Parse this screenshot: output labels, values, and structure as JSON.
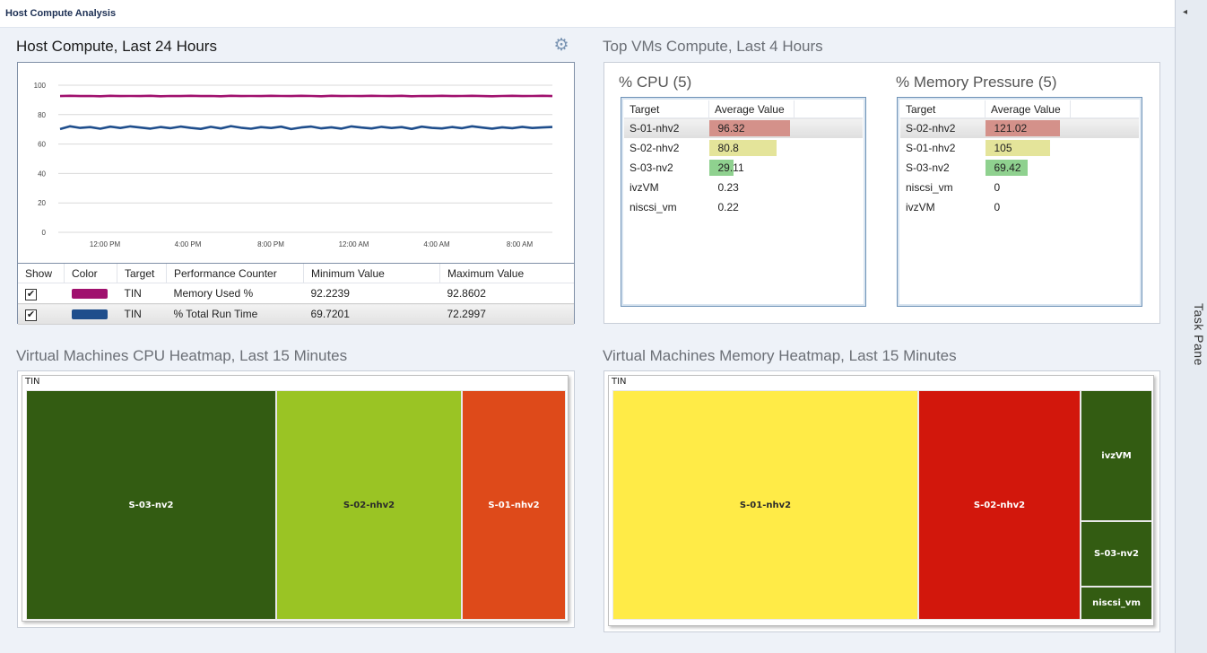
{
  "window": {
    "title": "Host Compute Analysis"
  },
  "task_pane": {
    "label": "Task Pane",
    "collapse_glyph": "◂"
  },
  "host": {
    "title": "Host Compute, Last 24 Hours",
    "gear_icon": "gear-icon",
    "chart_data": {
      "type": "line",
      "x_ticks": [
        "12:00 PM",
        "4:00 PM",
        "8:00 PM",
        "12:00 AM",
        "4:00 AM",
        "8:00 AM"
      ],
      "y_ticks": [
        "100",
        "80",
        "60",
        "40",
        "20",
        "0"
      ],
      "ylim": [
        0,
        100
      ],
      "series": [
        {
          "name": "Memory Used %",
          "color": "#a0106e",
          "values": [
            92.6,
            92.8,
            92.6,
            92.7,
            92.5,
            92.8,
            92.6,
            92.7,
            92.6,
            92.8,
            92.5,
            92.7,
            92.6,
            92.8,
            92.6,
            92.7,
            92.5,
            92.8,
            92.6,
            92.7,
            92.6,
            92.8,
            92.7,
            92.6,
            92.8,
            92.7,
            92.5,
            92.8,
            92.6,
            92.7,
            92.6,
            92.8,
            92.7,
            92.6,
            92.8,
            92.5,
            92.7,
            92.6,
            92.8,
            92.6,
            92.7,
            92.8,
            92.6,
            92.5,
            92.7,
            92.8,
            92.6,
            92.7,
            92.8,
            92.6
          ]
        },
        {
          "name": "% Total Run Time",
          "color": "#1f4e8c",
          "values": [
            70.2,
            72.1,
            71.0,
            71.5,
            70.4,
            71.8,
            70.9,
            72.0,
            71.2,
            70.5,
            71.6,
            70.8,
            71.9,
            71.0,
            70.3,
            71.7,
            70.6,
            72.2,
            71.1,
            70.4,
            71.5,
            70.9,
            71.8,
            70.2,
            71.3,
            71.9,
            70.7,
            71.4,
            70.5,
            72.0,
            71.2,
            70.6,
            71.7,
            70.9,
            71.5,
            70.3,
            71.8,
            71.0,
            70.6,
            71.6,
            70.8,
            72.1,
            71.2,
            70.5,
            71.4,
            70.8,
            71.7,
            70.9,
            71.3,
            71.6
          ]
        }
      ]
    },
    "legend": {
      "columns": [
        "Show",
        "Color",
        "Target",
        "Performance Counter",
        "Minimum Value",
        "Maximum Value"
      ],
      "rows": [
        {
          "show": "✔",
          "color": "#a0106e",
          "target": "TIN",
          "counter": "Memory Used %",
          "min": "92.2239",
          "max": "92.8602"
        },
        {
          "show": "✔",
          "color": "#1f4e8c",
          "target": "TIN",
          "counter": "% Total Run Time",
          "min": "69.7201",
          "max": "72.2997"
        }
      ]
    }
  },
  "top_vms": {
    "title": "Top VMs Compute, Last 4 Hours",
    "cpu": {
      "title": "% CPU (5)",
      "columns": [
        "Target",
        "Average Value"
      ],
      "rows": [
        {
          "target": "S-01-nhv2",
          "value": "96.32",
          "num": 96.32,
          "color": "#d4918a"
        },
        {
          "target": "S-02-nhv2",
          "value": "80.8",
          "num": 80.8,
          "color": "#e4e49a"
        },
        {
          "target": "S-03-nv2",
          "value": "29.11",
          "num": 29.11,
          "color": "#8fd18f"
        },
        {
          "target": "ivzVM",
          "value": "0.23",
          "num": 0.23,
          "color": ""
        },
        {
          "target": "niscsi_vm",
          "value": "0.22",
          "num": 0.22,
          "color": ""
        }
      ]
    },
    "memory": {
      "title": "% Memory Pressure (5)",
      "columns": [
        "Target",
        "Average Value"
      ],
      "rows": [
        {
          "target": "S-02-nhv2",
          "value": "121.02",
          "num": 121.02,
          "color": "#d4918a"
        },
        {
          "target": "S-01-nhv2",
          "value": "105",
          "num": 105,
          "color": "#e4e49a"
        },
        {
          "target": "S-03-nv2",
          "value": "69.42",
          "num": 69.42,
          "color": "#8fd18f"
        },
        {
          "target": "niscsi_vm",
          "value": "0",
          "num": 0,
          "color": ""
        },
        {
          "target": "ivzVM",
          "value": "0",
          "num": 0,
          "color": ""
        }
      ]
    }
  },
  "cpu_heatmap": {
    "title": "Virtual Machines CPU Heatmap, Last 15 Minutes",
    "root": "TIN",
    "cells": [
      {
        "label": "S-03-nv2",
        "color": "#335c12",
        "text_color": "#ffffff"
      },
      {
        "label": "S-02-nhv2",
        "color": "#9ac424",
        "text_color": "#2b2b2b"
      },
      {
        "label": "S-01-nhv2",
        "color": "#de4a1a",
        "text_color": "#ffffff"
      }
    ]
  },
  "mem_heatmap": {
    "title": "Virtual Machines Memory Heatmap, Last 15 Minutes",
    "root": "TIN",
    "cells": [
      {
        "label": "S-01-nhv2",
        "color": "#ffeb47",
        "text_color": "#2b2b2b"
      },
      {
        "label": "S-02-nhv2",
        "color": "#d2170c",
        "text_color": "#ffffff"
      },
      {
        "label": "ivzVM",
        "color": "#335c12",
        "text_color": "#ffffff"
      },
      {
        "label": "S-03-nv2",
        "color": "#335c12",
        "text_color": "#ffffff"
      },
      {
        "label": "niscsi_vm",
        "color": "#335c12",
        "text_color": "#ffffff"
      }
    ]
  }
}
